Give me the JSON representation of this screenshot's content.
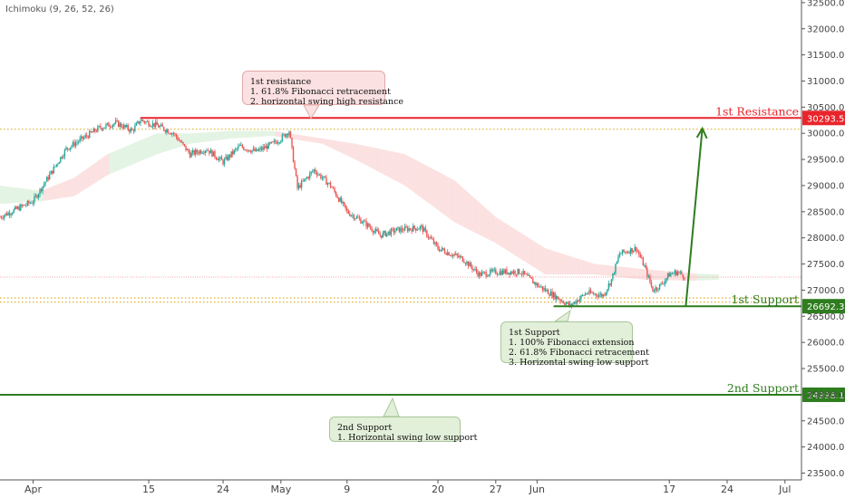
{
  "indicator": {
    "label": "Ichimoku (9, 26, 52, 26)"
  },
  "annotations": {
    "resistance_callout": {
      "title": "1st resistance",
      "line1": "1. 61.8% Fibonacci retracement",
      "line2": "2. horizontal swing high resistance"
    },
    "support1_callout": {
      "title": "1st Support",
      "line1": "1. 100% Fibonacci extension",
      "line2": "2. 61.8% Fibonacci retracement",
      "line3": "3. Horizontal swing low support"
    },
    "support2_callout": {
      "title": "2nd Support",
      "line1": "1.  Horizontal swing low support"
    }
  },
  "chart_data": {
    "type": "candlestick",
    "y_axis": {
      "ticks": [
        32500,
        32000,
        31500,
        31000,
        30500,
        30000,
        29500,
        29000,
        28500,
        28000,
        27500,
        27000,
        26500,
        26000,
        25500,
        25000,
        24500,
        24000,
        23500
      ],
      "tick_labels": [
        "32500.0",
        "32000.0",
        "31500.0",
        "31000.0",
        "30500.0",
        "30000.0",
        "29500.0",
        "29000.0",
        "28500.0",
        "28000.0",
        "27500.0",
        "27000.0",
        "26500.0",
        "26000.0",
        "25500.0",
        "25000.0",
        "24500.0",
        "24000.0",
        "23500.0"
      ],
      "range": [
        23370,
        32550
      ]
    },
    "x_axis": {
      "tick_labels": [
        "Apr",
        "15",
        "24",
        "May",
        "9",
        "20",
        "27",
        "Jun",
        "17",
        "24",
        "Jul"
      ],
      "range": [
        "2023-03-28",
        "2023-07-03"
      ]
    },
    "levels": [
      {
        "name": "1st Resistance",
        "value": 30293.5,
        "label": "30293.5",
        "color": "#e8252b",
        "start": "2023-04-14"
      },
      {
        "name": "1st Support",
        "value": 26692.3,
        "label": "26692.3",
        "color": "#2e7d1e",
        "start": "2023-06-03"
      },
      {
        "name": "2nd Support",
        "value": 24998.1,
        "label": "24998.1",
        "color": "#2e7d1e",
        "start": "2023-03-28"
      }
    ],
    "dotted_levels": [
      30080,
      26850,
      26770
    ],
    "current_price": 27250,
    "arrow": {
      "from": [
        "2023-06-19",
        26692.3
      ],
      "to": [
        "2023-06-21",
        30093
      ]
    },
    "candle_path": [
      [
        "2023-03-28",
        28400
      ],
      [
        "2023-03-30",
        28550
      ],
      [
        "2023-04-01",
        28700
      ],
      [
        "2023-04-03",
        29200
      ],
      [
        "2023-04-05",
        29700
      ],
      [
        "2023-04-07",
        29900
      ],
      [
        "2023-04-09",
        30100
      ],
      [
        "2023-04-11",
        30200
      ],
      [
        "2023-04-13",
        30050
      ],
      [
        "2023-04-14",
        30250
      ],
      [
        "2023-04-16",
        30150
      ],
      [
        "2023-04-18",
        30000
      ],
      [
        "2023-04-20",
        29600
      ],
      [
        "2023-04-22",
        29700
      ],
      [
        "2023-04-24",
        29450
      ],
      [
        "2023-04-26",
        29750
      ],
      [
        "2023-04-28",
        29650
      ],
      [
        "2023-04-30",
        29800
      ],
      [
        "2023-05-01",
        29900
      ],
      [
        "2023-05-02",
        30050
      ],
      [
        "2023-05-03",
        28950
      ],
      [
        "2023-05-05",
        29300
      ],
      [
        "2023-05-07",
        29000
      ],
      [
        "2023-05-09",
        28500
      ],
      [
        "2023-05-11",
        28300
      ],
      [
        "2023-05-13",
        28050
      ],
      [
        "2023-05-15",
        28150
      ],
      [
        "2023-05-18",
        28200
      ],
      [
        "2023-05-20",
        27800
      ],
      [
        "2023-05-23",
        27600
      ],
      [
        "2023-05-25",
        27300
      ],
      [
        "2023-05-27",
        27350
      ],
      [
        "2023-05-30",
        27350
      ],
      [
        "2023-06-01",
        27100
      ],
      [
        "2023-06-03",
        26900
      ],
      [
        "2023-06-05",
        26700
      ],
      [
        "2023-06-07",
        26950
      ],
      [
        "2023-06-09",
        26900
      ],
      [
        "2023-06-10",
        27200
      ],
      [
        "2023-06-11",
        27700
      ],
      [
        "2023-06-13",
        27800
      ],
      [
        "2023-06-14",
        27450
      ],
      [
        "2023-06-15",
        27000
      ],
      [
        "2023-06-16",
        27100
      ],
      [
        "2023-06-17",
        27300
      ],
      [
        "2023-06-18",
        27350
      ],
      [
        "2023-06-19",
        27250
      ]
    ],
    "cloud_path": [
      [
        "2023-03-28",
        29000,
        28650,
        "green"
      ],
      [
        "2023-04-02",
        28900,
        28700,
        "red"
      ],
      [
        "2023-04-06",
        29150,
        28800,
        "red"
      ],
      [
        "2023-04-10",
        29600,
        29200,
        "green"
      ],
      [
        "2023-04-16",
        30000,
        29600,
        "green"
      ],
      [
        "2023-04-20",
        30000,
        29800,
        "green"
      ],
      [
        "2023-04-25",
        30050,
        29900,
        "green"
      ],
      [
        "2023-04-30",
        30050,
        29950,
        "red"
      ],
      [
        "2023-05-06",
        29900,
        29800,
        "red"
      ],
      [
        "2023-05-10",
        29800,
        29500,
        "red"
      ],
      [
        "2023-05-16",
        29600,
        29000,
        "red"
      ],
      [
        "2023-05-22",
        29100,
        28300,
        "red"
      ],
      [
        "2023-05-27",
        28400,
        27900,
        "red"
      ],
      [
        "2023-06-02",
        27800,
        27300,
        "red"
      ],
      [
        "2023-06-08",
        27500,
        27300,
        "red"
      ],
      [
        "2023-06-14",
        27400,
        27200,
        "red"
      ],
      [
        "2023-06-20",
        27320,
        27180,
        "green"
      ],
      [
        "2023-06-23",
        27300,
        27200,
        "green"
      ]
    ],
    "grid": false,
    "legend": "none"
  }
}
